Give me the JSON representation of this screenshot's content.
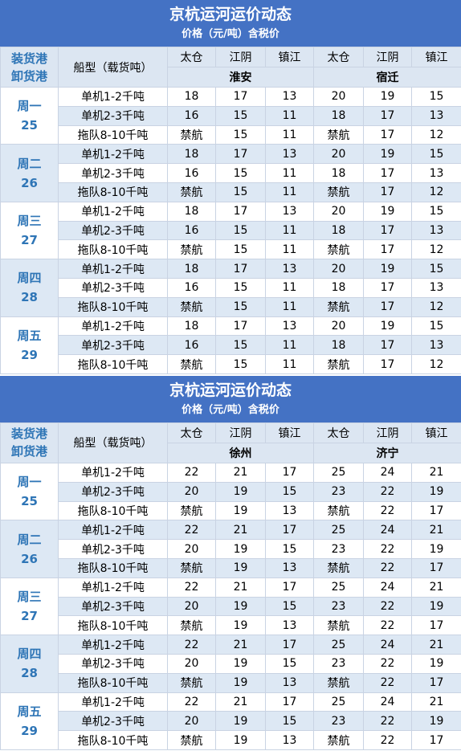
{
  "tables": [
    {
      "title": "京杭运河运价动态",
      "subtitle": "价格（元/吨）含税价",
      "load_label": "装货港",
      "unload_label": "卸货港",
      "ship_label": "船型（载货吨）",
      "ports": [
        {
          "name": "淮安",
          "destinations": [
            "太仓",
            "江阴",
            "镇江"
          ]
        },
        {
          "name": "宿迁",
          "destinations": [
            "太仓",
            "江阴",
            "镇江"
          ]
        }
      ],
      "days": [
        {
          "day": "周一",
          "date": "25",
          "rows": [
            {
              "ship": "单机1-2千吨",
              "values": [
                18,
                17,
                13,
                20,
                19,
                15
              ]
            },
            {
              "ship": "单机2-3千吨",
              "values": [
                16,
                15,
                11,
                18,
                17,
                13
              ]
            },
            {
              "ship": "拖队8-10千吨",
              "values": [
                "禁航",
                15,
                11,
                "禁航",
                17,
                12
              ]
            }
          ]
        },
        {
          "day": "周二",
          "date": "26",
          "rows": [
            {
              "ship": "单机1-2千吨",
              "values": [
                18,
                17,
                13,
                20,
                19,
                15
              ]
            },
            {
              "ship": "单机2-3千吨",
              "values": [
                16,
                15,
                11,
                18,
                17,
                13
              ]
            },
            {
              "ship": "拖队8-10千吨",
              "values": [
                "禁航",
                15,
                11,
                "禁航",
                17,
                12
              ]
            }
          ]
        },
        {
          "day": "周三",
          "date": "27",
          "rows": [
            {
              "ship": "单机1-2千吨",
              "values": [
                18,
                17,
                13,
                20,
                19,
                15
              ]
            },
            {
              "ship": "单机2-3千吨",
              "values": [
                16,
                15,
                11,
                18,
                17,
                13
              ]
            },
            {
              "ship": "拖队8-10千吨",
              "values": [
                "禁航",
                15,
                11,
                "禁航",
                17,
                12
              ]
            }
          ]
        },
        {
          "day": "周四",
          "date": "28",
          "rows": [
            {
              "ship": "单机1-2千吨",
              "values": [
                18,
                17,
                13,
                20,
                19,
                15
              ]
            },
            {
              "ship": "单机2-3千吨",
              "values": [
                16,
                15,
                11,
                18,
                17,
                13
              ]
            },
            {
              "ship": "拖队8-10千吨",
              "values": [
                "禁航",
                15,
                11,
                "禁航",
                17,
                12
              ]
            }
          ]
        },
        {
          "day": "周五",
          "date": "29",
          "rows": [
            {
              "ship": "单机1-2千吨",
              "values": [
                18,
                17,
                13,
                20,
                19,
                15
              ]
            },
            {
              "ship": "单机2-3千吨",
              "values": [
                16,
                15,
                11,
                18,
                17,
                13
              ]
            },
            {
              "ship": "拖队8-10千吨",
              "values": [
                "禁航",
                15,
                11,
                "禁航",
                17,
                12
              ]
            }
          ]
        }
      ]
    },
    {
      "title": "京杭运河运价动态",
      "subtitle": "价格（元/吨）含税价",
      "load_label": "装货港",
      "unload_label": "卸货港",
      "ship_label": "船型（载货吨）",
      "ports": [
        {
          "name": "徐州",
          "destinations": [
            "太仓",
            "江阴",
            "镇江"
          ]
        },
        {
          "name": "济宁",
          "destinations": [
            "太仓",
            "江阴",
            "镇江"
          ]
        }
      ],
      "days": [
        {
          "day": "周一",
          "date": "25",
          "rows": [
            {
              "ship": "单机1-2千吨",
              "values": [
                22,
                21,
                17,
                25,
                24,
                21
              ]
            },
            {
              "ship": "单机2-3千吨",
              "values": [
                20,
                19,
                15,
                23,
                22,
                19
              ]
            },
            {
              "ship": "拖队8-10千吨",
              "values": [
                "禁航",
                19,
                13,
                "禁航",
                22,
                17
              ]
            }
          ]
        },
        {
          "day": "周二",
          "date": "26",
          "rows": [
            {
              "ship": "单机1-2千吨",
              "values": [
                22,
                21,
                17,
                25,
                24,
                21
              ]
            },
            {
              "ship": "单机2-3千吨",
              "values": [
                20,
                19,
                15,
                23,
                22,
                19
              ]
            },
            {
              "ship": "拖队8-10千吨",
              "values": [
                "禁航",
                19,
                13,
                "禁航",
                22,
                17
              ]
            }
          ]
        },
        {
          "day": "周三",
          "date": "27",
          "rows": [
            {
              "ship": "单机1-2千吨",
              "values": [
                22,
                21,
                17,
                25,
                24,
                21
              ]
            },
            {
              "ship": "单机2-3千吨",
              "values": [
                20,
                19,
                15,
                23,
                22,
                19
              ]
            },
            {
              "ship": "拖队8-10千吨",
              "values": [
                "禁航",
                19,
                13,
                "禁航",
                22,
                17
              ]
            }
          ]
        },
        {
          "day": "周四",
          "date": "28",
          "rows": [
            {
              "ship": "单机1-2千吨",
              "values": [
                22,
                21,
                17,
                25,
                24,
                21
              ]
            },
            {
              "ship": "单机2-3千吨",
              "values": [
                20,
                19,
                15,
                23,
                22,
                19
              ]
            },
            {
              "ship": "拖队8-10千吨",
              "values": [
                "禁航",
                19,
                13,
                "禁航",
                22,
                17
              ]
            }
          ]
        },
        {
          "day": "周五",
          "date": "29",
          "rows": [
            {
              "ship": "单机1-2千吨",
              "values": [
                22,
                21,
                17,
                25,
                24,
                21
              ]
            },
            {
              "ship": "单机2-3千吨",
              "values": [
                20,
                19,
                15,
                23,
                22,
                19
              ]
            },
            {
              "ship": "拖队8-10千吨",
              "values": [
                "禁航",
                19,
                13,
                "禁航",
                22,
                17
              ]
            }
          ]
        }
      ]
    }
  ]
}
